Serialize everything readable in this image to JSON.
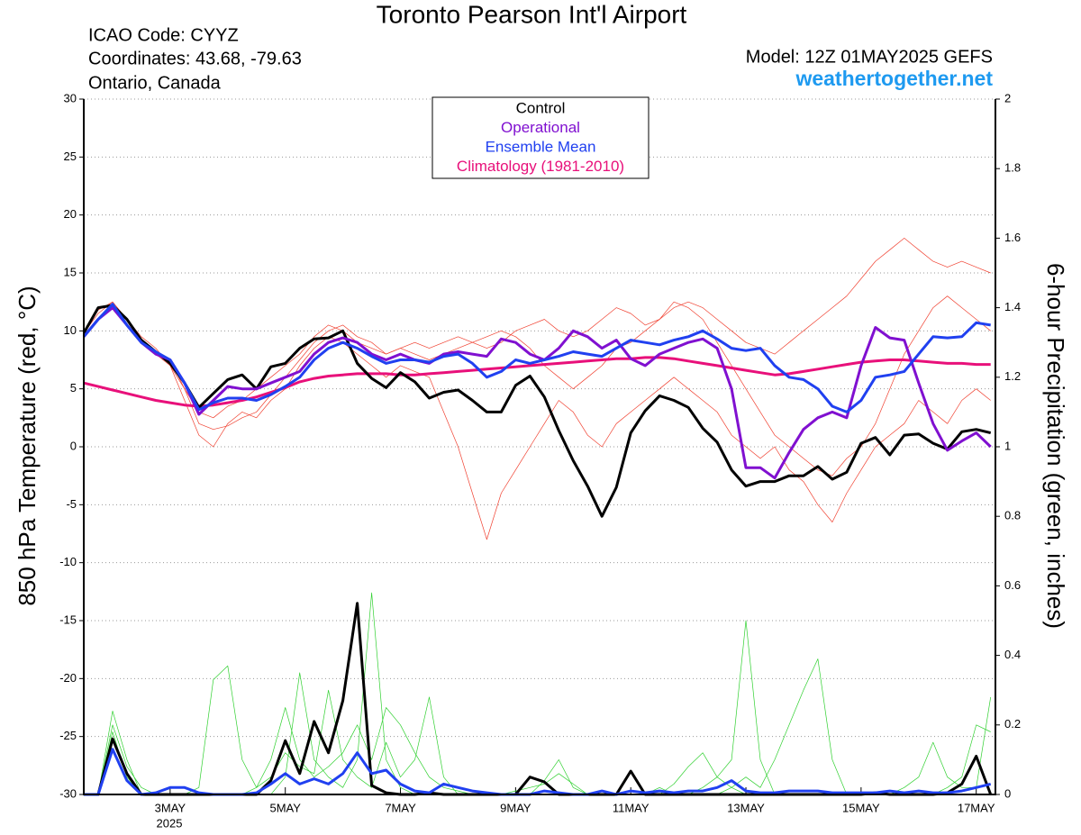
{
  "chart_data": {
    "type": "line",
    "title": "Toronto Pearson Int'l Airport",
    "info_left": [
      "ICAO Code: CYYZ",
      "Coordinates: 43.68, -79.63",
      "Ontario, Canada"
    ],
    "model": "Model: 12Z 01MAY2025 GEFS",
    "site": "weathertogether.net",
    "year_label": "2025",
    "ylabel": "850 hPa Temperature (red, °C)",
    "y2label": "6-hour Precipitation (green, inches)",
    "xlim": [
      0,
      380
    ],
    "xticks": [
      {
        "value": 36,
        "label": "3MAY"
      },
      {
        "value": 84,
        "label": "5MAY"
      },
      {
        "value": 132,
        "label": "7MAY"
      },
      {
        "value": 180,
        "label": "9MAY"
      },
      {
        "value": 228,
        "label": "11MAY"
      },
      {
        "value": 276,
        "label": "13MAY"
      },
      {
        "value": 324,
        "label": "15MAY"
      },
      {
        "value": 372,
        "label": "17MAY"
      }
    ],
    "ylim": [
      -30,
      30
    ],
    "yticks": [
      -30,
      -25,
      -20,
      -15,
      -10,
      -5,
      0,
      5,
      10,
      15,
      20,
      25,
      30
    ],
    "y2lim": [
      0,
      2
    ],
    "y2ticks": [
      0,
      0.2,
      0.4,
      0.6,
      0.8,
      1,
      1.2,
      1.4,
      1.6,
      1.8,
      2
    ],
    "grid": true,
    "x": [
      0,
      6,
      12,
      18,
      24,
      30,
      36,
      42,
      48,
      54,
      60,
      66,
      72,
      78,
      84,
      90,
      96,
      102,
      108,
      114,
      120,
      126,
      132,
      138,
      144,
      150,
      156,
      162,
      168,
      174,
      180,
      186,
      192,
      198,
      204,
      210,
      216,
      222,
      228,
      234,
      240,
      246,
      252,
      258,
      264,
      270,
      276,
      282,
      288,
      294,
      300,
      306,
      312,
      318,
      324,
      330,
      336,
      342,
      348,
      354,
      360,
      366,
      372,
      378
    ],
    "series": [
      {
        "color": "#f04030",
        "axis": "y",
        "values": [
          9.8,
          11.5,
          12.5,
          11,
          9.5,
          8.5,
          7,
          5,
          3,
          2.5,
          3.5,
          4,
          5,
          6,
          7,
          8,
          9.5,
          10.5,
          10,
          9,
          8.5,
          8,
          8.5,
          9,
          8.5,
          9,
          9.5,
          9,
          8.5,
          9,
          10,
          10.5,
          11,
          10,
          9.5,
          10,
          11,
          12,
          11.5,
          10.5,
          11,
          12,
          12.5,
          12,
          11,
          10,
          9,
          8.5,
          8,
          9,
          10,
          11,
          12,
          13,
          14.5,
          16,
          17,
          18,
          17,
          16,
          15.5,
          16,
          15.5,
          15
        ]
      },
      {
        "color": "#f04030",
        "axis": "y",
        "values": [
          9.5,
          11,
          12,
          10.5,
          9,
          8,
          7,
          4,
          1,
          0,
          2,
          3,
          2.5,
          4,
          5,
          7,
          8.5,
          9.5,
          9,
          8,
          7,
          6,
          7,
          6.5,
          6,
          3,
          0,
          -4,
          -8,
          -4,
          -2,
          0,
          2,
          4,
          3,
          1,
          0,
          2,
          3,
          4,
          5,
          6,
          5,
          4,
          3,
          1,
          0,
          -1,
          0,
          -2,
          -3,
          -5,
          -6.5,
          -4,
          -2,
          0,
          1,
          2,
          4,
          3,
          2,
          4,
          5,
          4
        ]
      },
      {
        "color": "#f04030",
        "axis": "y",
        "values": [
          9.7,
          11.8,
          12.5,
          11,
          9,
          8,
          7.5,
          5,
          2,
          1.5,
          1.8,
          2.5,
          3,
          4.5,
          6,
          7.5,
          9,
          10,
          10.5,
          9.5,
          9,
          8,
          8.5,
          8,
          7.5,
          8,
          8.5,
          9,
          9.5,
          10,
          9.5,
          8.5,
          7,
          6,
          5,
          6,
          7,
          8.5,
          9,
          10,
          11,
          12.5,
          12,
          11,
          9,
          7,
          5,
          3,
          1,
          0,
          -1,
          -2,
          -2.5,
          -1,
          0,
          2,
          5,
          8,
          10,
          12,
          13,
          12,
          11,
          10
        ]
      },
      {
        "color": "#30d030",
        "axis": "y2",
        "values": [
          0,
          0,
          0.24,
          0.1,
          0,
          0,
          0,
          0,
          0,
          0,
          0,
          0,
          0,
          0,
          0.05,
          0.35,
          0.1,
          0.05,
          0.02,
          0.1,
          0.58,
          0.1,
          0.02,
          0,
          0,
          0,
          0,
          0,
          0,
          0,
          0,
          0,
          0,
          0,
          0,
          0,
          0,
          0,
          0,
          0,
          0,
          0,
          0,
          0.02,
          0.05,
          0.1,
          0.5,
          0.1,
          0,
          0,
          0,
          0,
          0,
          0,
          0,
          0,
          0,
          0,
          0,
          0,
          0.02,
          0.05,
          0.2,
          0.18
        ]
      },
      {
        "color": "#30d030",
        "axis": "y2",
        "values": [
          0,
          0,
          0.18,
          0.05,
          0,
          0,
          0,
          0,
          0.02,
          0.33,
          0.37,
          0.1,
          0.02,
          0.05,
          0.12,
          0.08,
          0.06,
          0.3,
          0.1,
          0.05,
          0.02,
          0.15,
          0.05,
          0.1,
          0.28,
          0.05,
          0,
          0,
          0,
          0,
          0,
          0,
          0.04,
          0.1,
          0.02,
          0,
          0,
          0,
          0,
          0,
          0.02,
          0,
          0,
          0,
          0,
          0.02,
          0.05,
          0.02,
          0.1,
          0.2,
          0.3,
          0.39,
          0.1,
          0,
          0,
          0,
          0,
          0,
          0,
          0,
          0,
          0,
          0,
          0
        ]
      },
      {
        "color": "#30d030",
        "axis": "y2",
        "values": [
          0,
          0,
          0.2,
          0.08,
          0.02,
          0,
          0,
          0,
          0,
          0,
          0,
          0,
          0.02,
          0.1,
          0.25,
          0.1,
          0.05,
          0.08,
          0.12,
          0.2,
          0.1,
          0.25,
          0.2,
          0.12,
          0.05,
          0.02,
          0.01,
          0,
          0,
          0,
          0.01,
          0.02,
          0.03,
          0.06,
          0.03,
          0,
          0,
          0,
          0.01,
          0,
          0,
          0.03,
          0.08,
          0.12,
          0.05,
          0.02,
          0,
          0,
          0,
          0,
          0,
          0,
          0,
          0,
          0,
          0,
          0,
          0.02,
          0.05,
          0.15,
          0.05,
          0.02,
          0.02,
          0.28
        ]
      },
      {
        "name": "Climatology (1981-2010)",
        "color": "#e8107a",
        "axis": "y",
        "values": [
          5.5,
          5.2,
          4.9,
          4.6,
          4.3,
          4,
          3.8,
          3.6,
          3.5,
          3.6,
          3.8,
          4,
          4.3,
          4.7,
          5.1,
          5.6,
          5.9,
          6.1,
          6.2,
          6.3,
          6.3,
          6.3,
          6.2,
          6.2,
          6.3,
          6.4,
          6.5,
          6.6,
          6.7,
          6.8,
          6.9,
          7,
          7.1,
          7.2,
          7.3,
          7.4,
          7.5,
          7.6,
          7.6,
          7.7,
          7.7,
          7.6,
          7.4,
          7.2,
          7,
          6.8,
          6.6,
          6.4,
          6.2,
          6.3,
          6.5,
          6.7,
          6.9,
          7.1,
          7.3,
          7.4,
          7.5,
          7.5,
          7.4,
          7.3,
          7.2,
          7.2,
          7.1,
          7.1
        ]
      },
      {
        "name": "Control",
        "color": "#000000",
        "axis": "y",
        "values": [
          9.8,
          12,
          12.2,
          11,
          9.2,
          8.2,
          7.2,
          5.5,
          3.4,
          4.6,
          5.8,
          6.2,
          5,
          6.9,
          7.2,
          8.5,
          9.3,
          9.4,
          10,
          7.2,
          5.9,
          5.1,
          6.4,
          5.6,
          4.2,
          4.7,
          4.9,
          4,
          3,
          3,
          5.3,
          6.1,
          4.3,
          1.4,
          -1.2,
          -3.4,
          -6,
          -3.5,
          1.2,
          3.1,
          4.4,
          4,
          3.4,
          1.6,
          0.4,
          -2,
          -3.4,
          -3,
          -3,
          -2.5,
          -2.5,
          -1.7,
          -2.8,
          -2.2,
          0.3,
          0.8,
          -0.7,
          1,
          1.1,
          0.3,
          -0.2,
          1.3,
          1.5,
          1.2
        ]
      },
      {
        "color": "#000000",
        "axis": "y2",
        "values": [
          0,
          0,
          0.16,
          0.06,
          0,
          0,
          0,
          0,
          0,
          0,
          0,
          0,
          0,
          0.04,
          0.155,
          0.06,
          0.21,
          0.12,
          0.27,
          0.55,
          0.026,
          0.005,
          0,
          0,
          0.005,
          0,
          0,
          0,
          0,
          0,
          0,
          0.05,
          0.036,
          0,
          0,
          0,
          0,
          0,
          0.067,
          0,
          0,
          0,
          0,
          0,
          0,
          0,
          0,
          0,
          0,
          0,
          0,
          0,
          0,
          0,
          0,
          0.005,
          0,
          0,
          0,
          0,
          0.005,
          0.03,
          0.11,
          0
        ]
      },
      {
        "name": "Operational",
        "color": "#8010d0",
        "axis": "y",
        "values": [
          9.5,
          11,
          12,
          10.5,
          9,
          8,
          7.5,
          5.5,
          2.8,
          4,
          5.2,
          5,
          5,
          5.5,
          6,
          6.5,
          8,
          9,
          9.4,
          9,
          8,
          7.5,
          8,
          7.5,
          7.2,
          8,
          8.2,
          8,
          7.8,
          9.3,
          9,
          8,
          7.5,
          8.5,
          10,
          9.5,
          8.5,
          9.2,
          7.6,
          7,
          8,
          8.5,
          9,
          9.3,
          8.5,
          5,
          -1.8,
          -1.8,
          -2.7,
          -0.5,
          1.5,
          2.5,
          3,
          2.5,
          7,
          10.3,
          9.4,
          9.2,
          5.5,
          2,
          -0.3,
          0.5,
          1.2,
          0
        ]
      },
      {
        "name": "Ensemble Mean",
        "color": "#2040f0",
        "axis": "y",
        "values": [
          9.5,
          11,
          12.3,
          10.5,
          9,
          8.2,
          7.5,
          5.5,
          3.2,
          3.8,
          4.2,
          4.2,
          4,
          4.5,
          5.2,
          6,
          7.5,
          8.5,
          9,
          8.5,
          7.8,
          7.2,
          7.5,
          7.5,
          7.3,
          7.8,
          8,
          7.2,
          6,
          6.5,
          7.5,
          7.2,
          7.5,
          7.8,
          8.2,
          8,
          7.8,
          8.5,
          9.2,
          9,
          8.8,
          9.2,
          9.5,
          10,
          9.3,
          8.5,
          8.3,
          8.5,
          7,
          6,
          5.8,
          5,
          3.5,
          3,
          4,
          6,
          6.2,
          6.5,
          8,
          9.5,
          9.4,
          9.5,
          10.7,
          10.5
        ]
      },
      {
        "color": "#2040f0",
        "axis": "y2",
        "values": [
          0,
          0,
          0.13,
          0.04,
          0,
          0.005,
          0.02,
          0.02,
          0.005,
          0,
          0,
          0,
          0.005,
          0.03,
          0.06,
          0.03,
          0.045,
          0.03,
          0.06,
          0.12,
          0.06,
          0.07,
          0.03,
          0.01,
          0.005,
          0.03,
          0.02,
          0.01,
          0.005,
          0,
          0,
          0,
          0.01,
          0.005,
          0,
          0,
          0.01,
          0,
          0.01,
          0.005,
          0.01,
          0.005,
          0.01,
          0.01,
          0.02,
          0.04,
          0.01,
          0.005,
          0.005,
          0.01,
          0.01,
          0.01,
          0.005,
          0.005,
          0.005,
          0.005,
          0.01,
          0.005,
          0.01,
          0.005,
          0.005,
          0.01,
          0.02,
          0.03
        ]
      }
    ]
  }
}
